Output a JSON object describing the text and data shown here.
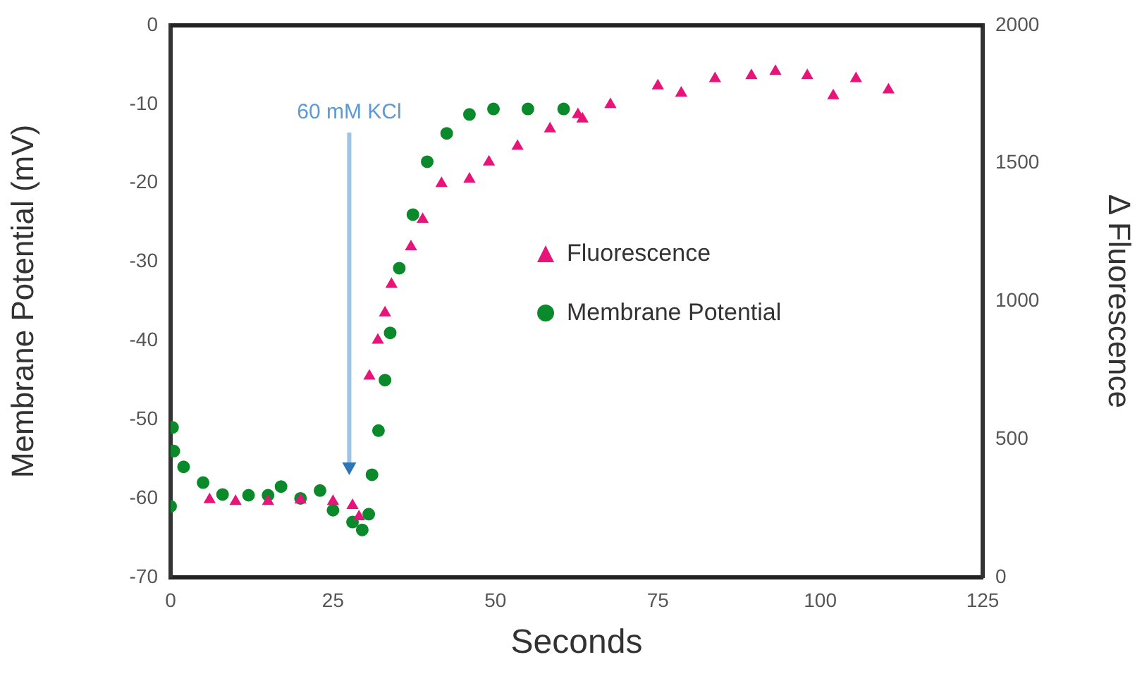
{
  "chart_data": {
    "type": "scatter",
    "xlabel": "Seconds",
    "ylabel": "Membrane Potential (mV)",
    "y2label": "Δ Fluorescence",
    "xlim": [
      0,
      125
    ],
    "xticks": [
      0,
      25,
      50,
      75,
      100,
      125
    ],
    "ylim": [
      -70,
      0
    ],
    "yticks": [
      -70,
      -60,
      -50,
      -40,
      -30,
      -20,
      -10,
      0
    ],
    "y2lim": [
      0,
      2000
    ],
    "y2ticks": [
      0,
      500,
      1000,
      1500,
      2000
    ],
    "grid": false,
    "legend": "right",
    "annotations": [
      "60 mM KCl"
    ],
    "series": [
      {
        "name": "Fluorescence",
        "color": "#e8147a",
        "axis": "y2",
        "marker": "triangle",
        "x": [
          6,
          10,
          15,
          20,
          25,
          28,
          29,
          30.6,
          31.9,
          33,
          34,
          37,
          38.8,
          41.7,
          46,
          49,
          53.4,
          58.4,
          62.7,
          63.4,
          67.7,
          75,
          78.6,
          83.8,
          89.4,
          93.1,
          98,
          102,
          105.5,
          110.5
        ],
        "values": [
          281,
          275,
          275,
          280,
          275,
          260,
          219,
          729,
          859,
          958,
          1062,
          1198,
          1297,
          1427,
          1443,
          1505,
          1562,
          1625,
          1677,
          1661,
          1713,
          1781,
          1755,
          1807,
          1818,
          1833,
          1818,
          1745,
          1807,
          1766
        ]
      },
      {
        "name": "Membrane Potential",
        "color": "#0a8a2a",
        "axis": "y",
        "marker": "circle",
        "x": [
          0,
          0.3,
          0.5,
          2,
          5,
          8,
          12,
          15,
          17,
          20,
          23,
          25,
          28,
          29.5,
          30.5,
          31,
          32,
          33,
          33.8,
          35.2,
          37.3,
          39.5,
          42.5,
          46,
          49.7,
          55,
          60.5
        ],
        "values": [
          -61,
          -51,
          -54,
          -56,
          -58,
          -59.5,
          -59.6,
          -59.6,
          -58.5,
          -60,
          -59,
          -61.5,
          -63,
          -64,
          -62,
          -57,
          -51.4,
          -45,
          -39,
          -30.8,
          -24,
          -17.3,
          -13.7,
          -11.3,
          -10.6,
          -10.6,
          -10.6
        ]
      }
    ]
  }
}
